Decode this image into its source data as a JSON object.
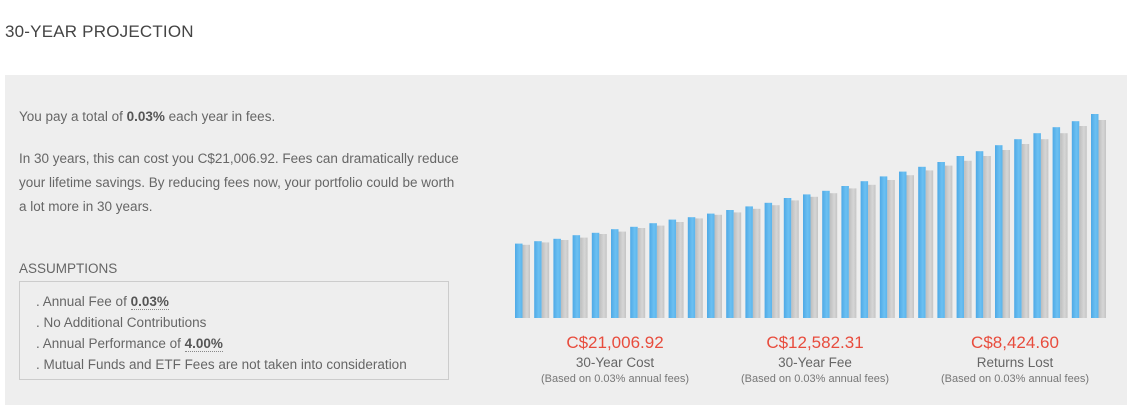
{
  "heading": "30-YEAR PROJECTION",
  "summary": {
    "prefix": "You pay a total of ",
    "fee": "0.03%",
    "suffix": " each year in fees."
  },
  "paragraph": "In 30 years, this can cost you C$21,006.92. Fees can dramatically reduce your lifetime savings. By reducing fees now, your portfolio could be worth a lot more in 30 years.",
  "assumptions": {
    "title": "ASSUMPTIONS",
    "items": [
      {
        "prefix": ". Annual Fee of ",
        "value": "0.03%"
      },
      {
        "prefix": ". No Additional Contributions",
        "value": ""
      },
      {
        "prefix": ". Annual Performance of ",
        "value": "4.00%"
      },
      {
        "prefix": ". Mutual Funds and ETF Fees are not taken into consideration",
        "value": ""
      }
    ]
  },
  "stats": [
    {
      "value": "C$21,006.92",
      "label": "30-Year Cost",
      "note": "(Based on 0.03% annual fees)"
    },
    {
      "value": "C$12,582.31",
      "label": "30-Year Fee",
      "note": "(Based on 0.03% annual fees)"
    },
    {
      "value": "C$8,424.60",
      "label": "Returns Lost",
      "note": "(Based on 0.03% annual fees)"
    }
  ],
  "colors": {
    "blue_bar": "#5ab4ec",
    "grey_bar": "#c8c8c8",
    "accent_red": "#e84c3d"
  },
  "chart_data": {
    "type": "bar",
    "series": [
      {
        "values": [
          62,
          64,
          66,
          69,
          71,
          74,
          76,
          79,
          82,
          84,
          87,
          90,
          93,
          96,
          100,
          103,
          106,
          110,
          114,
          118,
          122,
          126,
          130,
          135,
          139,
          144,
          149,
          154,
          159,
          164,
          170
        ]
      },
      {
        "values": [
          61,
          63,
          65,
          67,
          70,
          72,
          75,
          77,
          80,
          83,
          86,
          88,
          91,
          94,
          98,
          101,
          104,
          108,
          111,
          115,
          119,
          123,
          127,
          131,
          135,
          140,
          145,
          149,
          154,
          160,
          165
        ]
      }
    ]
  }
}
